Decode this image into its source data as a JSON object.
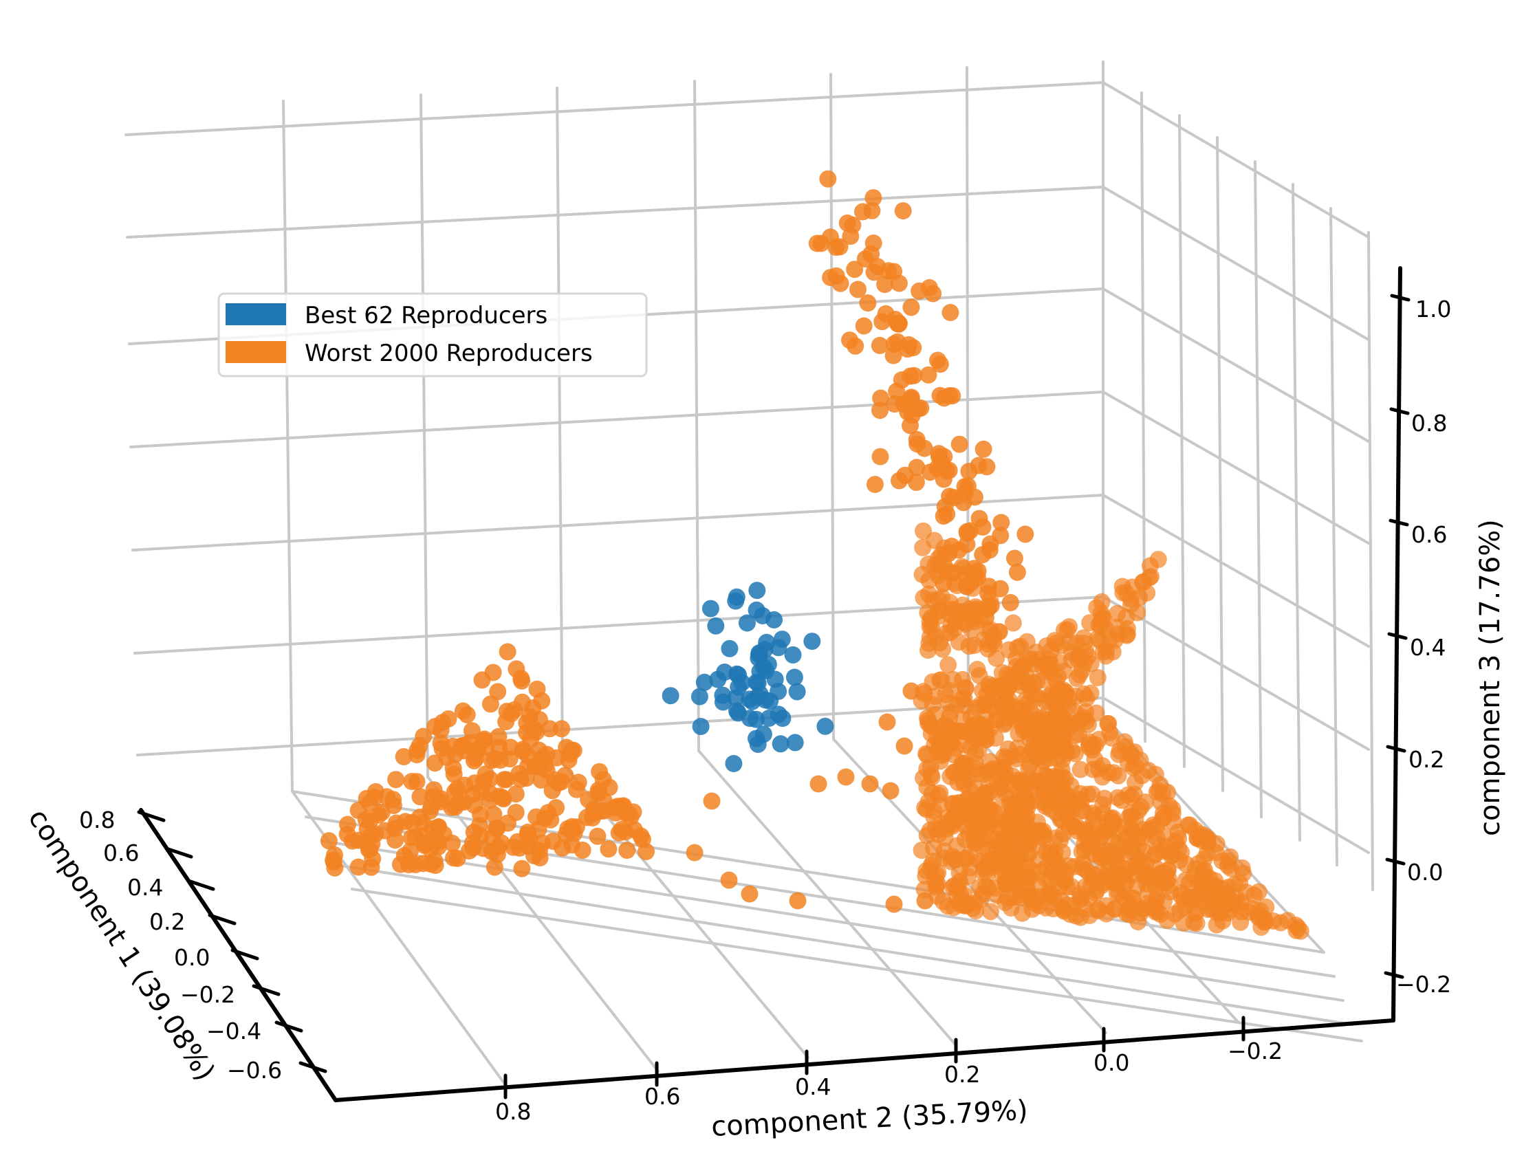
{
  "chart_data": {
    "type": "scatter",
    "projection": "3d",
    "axes": {
      "x": {
        "label": "component 2 (35.79%)",
        "range": [
          -0.3,
          0.95
        ],
        "ticks": [
          0.8,
          0.6,
          0.4,
          0.2,
          0.0,
          -0.2
        ],
        "tick_labels": [
          "0.8",
          "0.6",
          "0.4",
          "0.2",
          "0.0",
          "−0.2"
        ]
      },
      "y": {
        "label": "component 1 (39.08%)",
        "range": [
          -0.7,
          0.85
        ],
        "ticks": [
          0.8,
          0.6,
          0.4,
          0.2,
          0.0,
          -0.2,
          -0.4,
          -0.6
        ],
        "tick_labels": [
          "0.8",
          "0.6",
          "0.4",
          "0.2",
          "0.0",
          "−0.2",
          "−0.4",
          "−0.6"
        ]
      },
      "z": {
        "label": "component 3 (17.76%)",
        "range": [
          -0.25,
          1.05
        ],
        "ticks": [
          1.0,
          0.8,
          0.6,
          0.4,
          0.2,
          0.0,
          -0.2
        ],
        "tick_labels": [
          "1.0",
          "0.8",
          "0.6",
          "0.4",
          "0.2",
          "0.0",
          "−0.2"
        ]
      }
    },
    "grid": true,
    "legend": {
      "location": "upper-left",
      "entries": [
        {
          "label": "Best 62 Reproducers",
          "color": "#1f77b4"
        },
        {
          "label": "Worst 2000 Reproducers",
          "color": "#f28322"
        }
      ]
    },
    "series": [
      {
        "name": "Best 62 Reproducers",
        "color": "#1f77b4",
        "count": 62,
        "description": "compact cluster near component 3 ≈ 0.25–0.55",
        "points": [
          [
            0.3,
            0.55,
            0.52
          ],
          [
            0.32,
            0.52,
            0.5
          ],
          [
            0.28,
            0.5,
            0.48
          ],
          [
            0.34,
            0.48,
            0.45
          ],
          [
            0.3,
            0.47,
            0.42
          ],
          [
            0.27,
            0.45,
            0.4
          ],
          [
            0.33,
            0.44,
            0.38
          ],
          [
            0.29,
            0.42,
            0.36
          ],
          [
            0.31,
            0.4,
            0.33
          ],
          [
            0.26,
            0.39,
            0.3
          ]
        ]
      },
      {
        "name": "Worst 2000 Reproducers",
        "color": "#f28322",
        "count": 2000,
        "description": "a small triangular cluster on the left and a large tall triangular cluster on the right reaching component 3 ≈ 1.05",
        "points": [
          [
            0.85,
            0.2,
            0.1
          ],
          [
            0.7,
            0.25,
            0.18
          ],
          [
            0.6,
            0.15,
            0.08
          ],
          [
            0.1,
            0.5,
            0.9
          ],
          [
            0.05,
            0.4,
            0.6
          ],
          [
            -0.05,
            0.3,
            0.3
          ],
          [
            -0.1,
            0.1,
            0.05
          ],
          [
            -0.2,
            0.0,
            -0.05
          ]
        ]
      }
    ]
  }
}
